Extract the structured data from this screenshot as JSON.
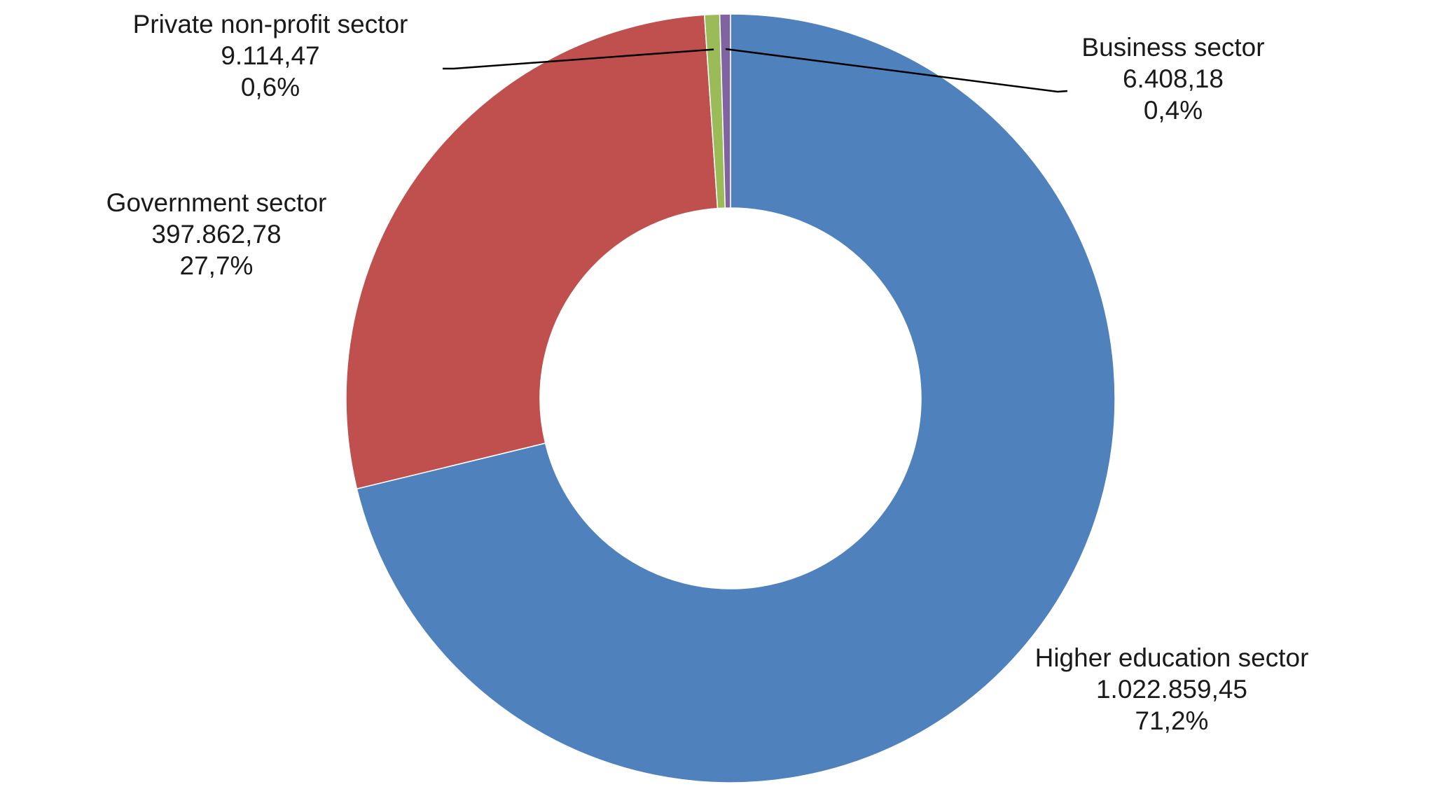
{
  "chart_data": {
    "type": "pie",
    "subtype": "doughnut",
    "slices": [
      {
        "name": "Higher education sector",
        "value_text": "1.022.859,45",
        "value": 1022859.45,
        "percent_text": "71,2%",
        "percent": 71.2,
        "color": "#4F81BD"
      },
      {
        "name": "Government sector",
        "value_text": "397.862,78",
        "value": 397862.78,
        "percent_text": "27,7%",
        "percent": 27.7,
        "color": "#C0504D"
      },
      {
        "name": "Private non-profit sector",
        "value_text": "9.114,47",
        "value": 9114.47,
        "percent_text": "0,6%",
        "percent": 0.6,
        "color": "#9BBB59"
      },
      {
        "name": "Business sector",
        "value_text": "6.408,18",
        "value": 6408.18,
        "percent_text": "0,4%",
        "percent": 0.4,
        "color": "#8064A2"
      }
    ],
    "start_angle_deg": 0,
    "direction": "clockwise",
    "legend": "none",
    "data_labels": true
  }
}
